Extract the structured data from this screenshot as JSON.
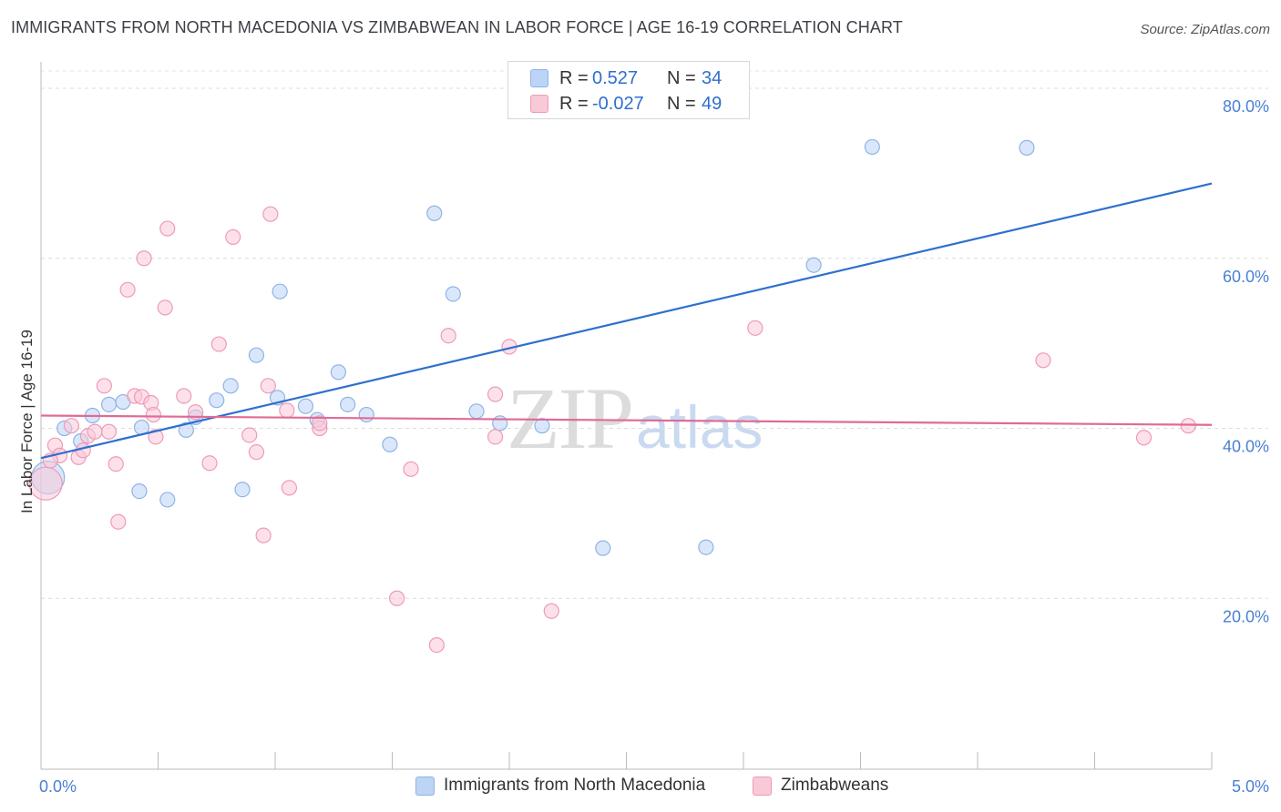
{
  "title": "IMMIGRANTS FROM NORTH MACEDONIA VS ZIMBABWEAN IN LABOR FORCE | AGE 16-19 CORRELATION CHART",
  "source": "Source: ZipAtlas.com",
  "watermark": {
    "zip": "ZIP",
    "atlas": "atlas"
  },
  "legend": {
    "rows": [
      {
        "r_label": "R =",
        "r_value": "0.527",
        "n_label": "N =",
        "n_value": "34",
        "color": "#bcd4f5",
        "border": "#8fb3e6"
      },
      {
        "r_label": "R =",
        "r_value": "-0.027",
        "n_label": "N =",
        "n_value": "49",
        "color": "#f9c9d8",
        "border": "#ee9bb6"
      }
    ]
  },
  "bottom_legend": [
    {
      "label": "Immigrants from North Macedonia",
      "color": "#bcd4f5",
      "border": "#8fb3e6"
    },
    {
      "label": "Zimbabweans",
      "color": "#f9c9d8",
      "border": "#ee9bb6"
    }
  ],
  "chart_data": {
    "type": "scatter",
    "xlabel": "",
    "ylabel": "In Labor Force | Age 16-19",
    "xlim": [
      0,
      5
    ],
    "ylim": [
      0,
      80
    ],
    "x_tick_labels": [
      {
        "value": 0,
        "label": "0.0%"
      },
      {
        "value": 5,
        "label": "5.0%"
      }
    ],
    "y_tick_labels": [
      {
        "value": 20,
        "label": "20.0%"
      },
      {
        "value": 40,
        "label": "40.0%"
      },
      {
        "value": 60,
        "label": "60.0%"
      },
      {
        "value": 80,
        "label": "80.0%"
      }
    ],
    "grid": true,
    "legend_position": "top-center",
    "series": [
      {
        "name": "Immigrants from North Macedonia",
        "color": "#bcd4f5",
        "stroke": "#8fb3e6",
        "line_color": "#2f6fce",
        "trend": {
          "x": [
            0,
            5
          ],
          "y": [
            36.5,
            68.8
          ]
        },
        "points": [
          {
            "x": 0.03,
            "y": 34.2,
            "big": true
          },
          {
            "x": 0.1,
            "y": 40.0
          },
          {
            "x": 0.17,
            "y": 38.5
          },
          {
            "x": 0.22,
            "y": 41.5
          },
          {
            "x": 0.29,
            "y": 42.8
          },
          {
            "x": 0.35,
            "y": 43.1
          },
          {
            "x": 0.43,
            "y": 40.1
          },
          {
            "x": 0.42,
            "y": 32.6
          },
          {
            "x": 0.54,
            "y": 31.6
          },
          {
            "x": 0.62,
            "y": 39.8
          },
          {
            "x": 0.66,
            "y": 41.3
          },
          {
            "x": 0.75,
            "y": 43.3
          },
          {
            "x": 0.81,
            "y": 45.0
          },
          {
            "x": 0.86,
            "y": 32.8
          },
          {
            "x": 0.92,
            "y": 48.6
          },
          {
            "x": 1.02,
            "y": 56.1
          },
          {
            "x": 1.01,
            "y": 43.6
          },
          {
            "x": 1.13,
            "y": 42.6
          },
          {
            "x": 1.18,
            "y": 41.0
          },
          {
            "x": 1.27,
            "y": 46.6
          },
          {
            "x": 1.31,
            "y": 42.8
          },
          {
            "x": 1.39,
            "y": 41.6
          },
          {
            "x": 1.49,
            "y": 38.1
          },
          {
            "x": 1.68,
            "y": 65.3
          },
          {
            "x": 1.76,
            "y": 55.8
          },
          {
            "x": 1.86,
            "y": 42.0
          },
          {
            "x": 1.96,
            "y": 40.6
          },
          {
            "x": 2.14,
            "y": 40.3
          },
          {
            "x": 2.4,
            "y": 25.9
          },
          {
            "x": 2.84,
            "y": 26.0
          },
          {
            "x": 3.3,
            "y": 59.2
          },
          {
            "x": 3.55,
            "y": 73.1
          },
          {
            "x": 4.21,
            "y": 73.0
          }
        ]
      },
      {
        "name": "Zimbabweans",
        "color": "#f9c9d8",
        "stroke": "#ee9bb6",
        "line_color": "#e06b96",
        "trend": {
          "x": [
            0,
            5
          ],
          "y": [
            41.5,
            40.4
          ]
        },
        "points": [
          {
            "x": 0.02,
            "y": 33.5,
            "big": true
          },
          {
            "x": 0.06,
            "y": 38.0
          },
          {
            "x": 0.08,
            "y": 36.8
          },
          {
            "x": 0.04,
            "y": 36.2
          },
          {
            "x": 0.13,
            "y": 40.3
          },
          {
            "x": 0.16,
            "y": 36.6
          },
          {
            "x": 0.18,
            "y": 37.4
          },
          {
            "x": 0.2,
            "y": 39.1
          },
          {
            "x": 0.23,
            "y": 39.6
          },
          {
            "x": 0.27,
            "y": 45.0
          },
          {
            "x": 0.29,
            "y": 39.6
          },
          {
            "x": 0.32,
            "y": 35.8
          },
          {
            "x": 0.33,
            "y": 29.0
          },
          {
            "x": 0.37,
            "y": 56.3
          },
          {
            "x": 0.4,
            "y": 43.8
          },
          {
            "x": 0.43,
            "y": 43.7
          },
          {
            "x": 0.44,
            "y": 60.0
          },
          {
            "x": 0.47,
            "y": 43.0
          },
          {
            "x": 0.48,
            "y": 41.6
          },
          {
            "x": 0.49,
            "y": 39.0
          },
          {
            "x": 0.53,
            "y": 54.2
          },
          {
            "x": 0.54,
            "y": 63.5
          },
          {
            "x": 0.61,
            "y": 43.8
          },
          {
            "x": 0.66,
            "y": 41.9
          },
          {
            "x": 0.72,
            "y": 35.9
          },
          {
            "x": 0.76,
            "y": 49.9
          },
          {
            "x": 0.82,
            "y": 62.5
          },
          {
            "x": 0.89,
            "y": 39.2
          },
          {
            "x": 0.92,
            "y": 37.2
          },
          {
            "x": 0.95,
            "y": 27.4
          },
          {
            "x": 0.97,
            "y": 45.0
          },
          {
            "x": 0.98,
            "y": 65.2
          },
          {
            "x": 1.05,
            "y": 42.1
          },
          {
            "x": 1.06,
            "y": 33.0
          },
          {
            "x": 1.19,
            "y": 40.0
          },
          {
            "x": 1.19,
            "y": 40.6
          },
          {
            "x": 1.52,
            "y": 20.0
          },
          {
            "x": 1.58,
            "y": 35.2
          },
          {
            "x": 1.69,
            "y": 14.5
          },
          {
            "x": 1.74,
            "y": 50.9
          },
          {
            "x": 1.94,
            "y": 39.0
          },
          {
            "x": 1.94,
            "y": 44.0
          },
          {
            "x": 2.0,
            "y": 49.6
          },
          {
            "x": 2.18,
            "y": 18.5
          },
          {
            "x": 3.05,
            "y": 51.8
          },
          {
            "x": 4.28,
            "y": 48.0
          },
          {
            "x": 4.71,
            "y": 38.9
          },
          {
            "x": 4.9,
            "y": 40.3
          }
        ]
      }
    ]
  }
}
